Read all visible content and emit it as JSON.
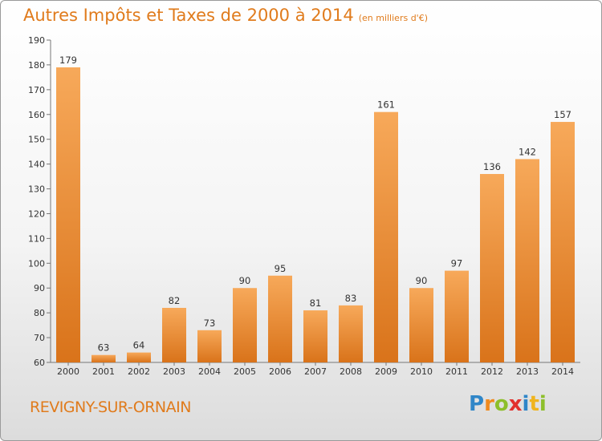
{
  "header": {
    "title": "Autres Impôts et Taxes de 2000 à 2014",
    "subtitle": "(en milliers d'€)"
  },
  "footer": {
    "town": "REVIGNY-SUR-ORNAIN",
    "logo_letters": [
      {
        "char": "P",
        "color": "#2f86c8"
      },
      {
        "char": "r",
        "color": "#f08a1e"
      },
      {
        "char": "o",
        "color": "#8dbf2b"
      },
      {
        "char": "x",
        "color": "#e2312d"
      },
      {
        "char": "i",
        "color": "#2f86c8"
      },
      {
        "char": "t",
        "color": "#f0b41e"
      },
      {
        "char": "i",
        "color": "#8dbf2b"
      }
    ]
  },
  "chart_data": {
    "type": "bar",
    "categories": [
      "2000",
      "2001",
      "2002",
      "2003",
      "2004",
      "2005",
      "2006",
      "2007",
      "2008",
      "2009",
      "2010",
      "2011",
      "2012",
      "2013",
      "2014"
    ],
    "values": [
      179,
      63,
      64,
      82,
      73,
      90,
      95,
      81,
      83,
      161,
      90,
      97,
      136,
      142,
      157
    ],
    "ylim": [
      60,
      190
    ],
    "yticks": [
      60,
      70,
      80,
      90,
      100,
      110,
      120,
      130,
      140,
      150,
      160,
      170,
      180,
      190
    ],
    "grid": false,
    "bar_color_light": "#f7a95a",
    "bar_color_dark": "#d9731a"
  }
}
